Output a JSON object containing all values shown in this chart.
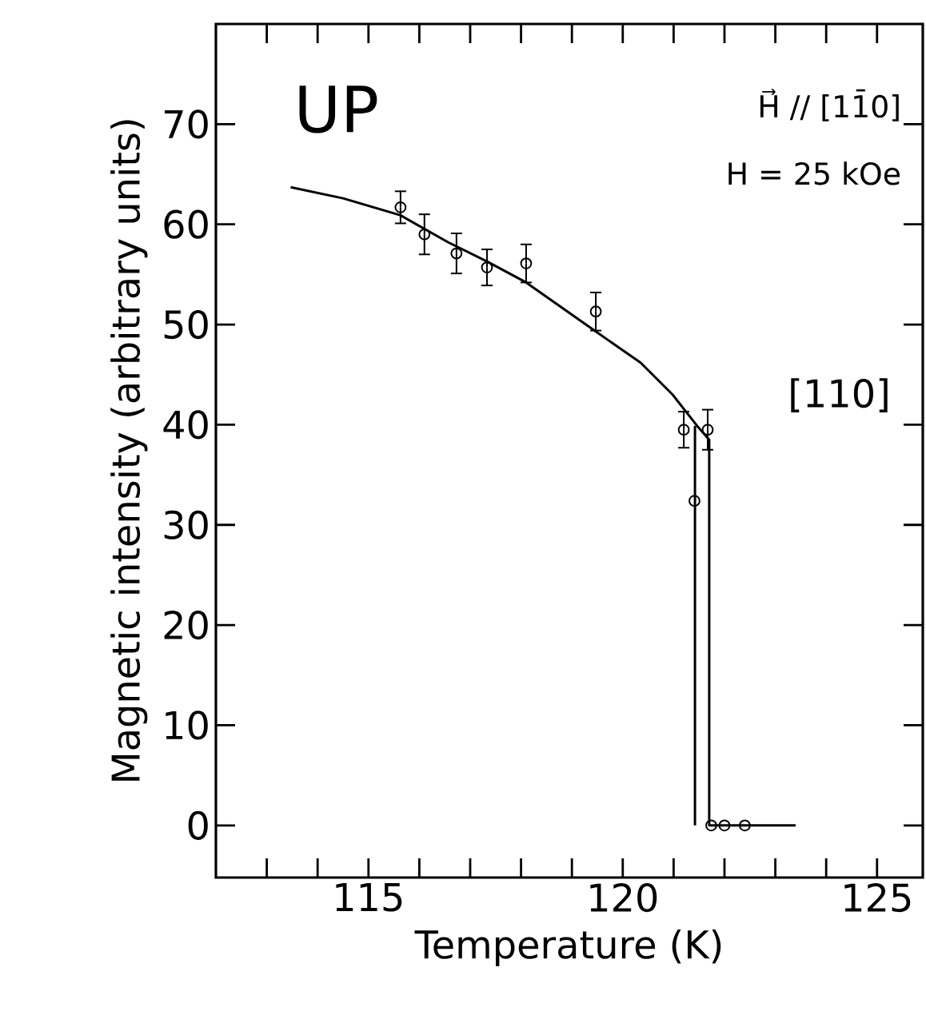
{
  "chart_data": {
    "type": "scatter",
    "xlabel": "Temperature (K)",
    "ylabel": "Magnetic intensity (arbitrary units)",
    "xlim": [
      112,
      125.9
    ],
    "ylim": [
      -5.2,
      80
    ],
    "xticks": [
      {
        "value": 113,
        "label": null
      },
      {
        "value": 114,
        "label": null
      },
      115,
      {
        "value": 116,
        "label": null
      },
      {
        "value": 117,
        "label": null
      },
      {
        "value": 118,
        "label": null
      },
      {
        "value": 119,
        "label": null
      },
      120,
      {
        "value": 121,
        "label": null
      },
      {
        "value": 122,
        "label": null
      },
      {
        "value": 123,
        "label": null
      },
      {
        "value": 124,
        "label": null
      },
      125
    ],
    "yticks": [
      0,
      10,
      20,
      30,
      40,
      50,
      60,
      70
    ],
    "marker": "circle",
    "annotations": [
      "UP",
      "H⃗ // [11̄0]",
      "H = 25 kOe",
      "[110]"
    ],
    "series": [
      {
        "type": "scatter",
        "color": "#000000",
        "x": [
          115.63,
          116.1,
          116.73,
          117.33,
          118.1,
          119.47,
          121.2,
          121.67,
          121.41,
          121.74,
          122.0,
          122.4
        ],
        "values": [
          61.7,
          59.0,
          57.1,
          55.7,
          56.1,
          51.3,
          39.5,
          39.5,
          32.4,
          0,
          0,
          0
        ],
        "errors": [
          1.6,
          2.0,
          2.0,
          1.8,
          1.9,
          1.9,
          1.8,
          2.0,
          null,
          null,
          null,
          null
        ]
      },
      {
        "type": "line",
        "color": "#000000",
        "marker": "none",
        "x": [
          113.47,
          114.5,
          115.63,
          116.57,
          117.33,
          118.1,
          119.47,
          120.35,
          120.98,
          121.46,
          121.7,
          121.7,
          123.4
        ],
        "values": [
          63.7,
          62.6,
          60.9,
          58.2,
          56.3,
          54.2,
          49.3,
          46.2,
          43.0,
          39.9,
          38.5,
          0,
          0
        ]
      },
      {
        "type": "line",
        "color": "#000000",
        "marker": "none",
        "x": [
          121.42,
          121.42
        ],
        "values": [
          0,
          39.9
        ]
      }
    ]
  }
}
